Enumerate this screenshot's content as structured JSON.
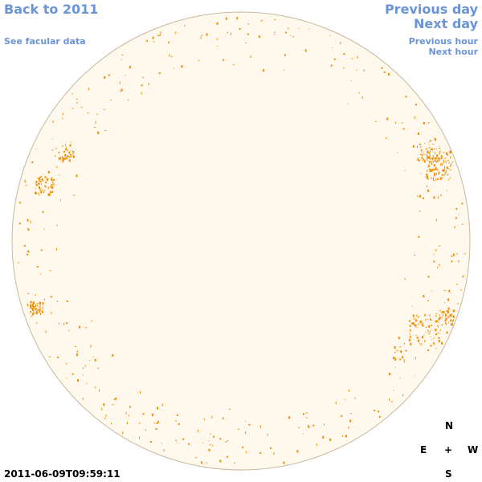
{
  "nav": {
    "back": "Back to 2011",
    "facular": "See facular data",
    "prev_day": "Previous day",
    "next_day": "Next day",
    "prev_hour": "Previous hour",
    "next_hour": "Next hour"
  },
  "timestamp": "2011-06-09T09:59:11",
  "compass": {
    "north": "N",
    "south": "S",
    "east": "E",
    "west": "W",
    "center": "+"
  },
  "colors": {
    "disk_fill": "#fff8ec",
    "disk_edge": "#c8b89c",
    "facula": "#f08c00",
    "link": "#6a93d8"
  }
}
